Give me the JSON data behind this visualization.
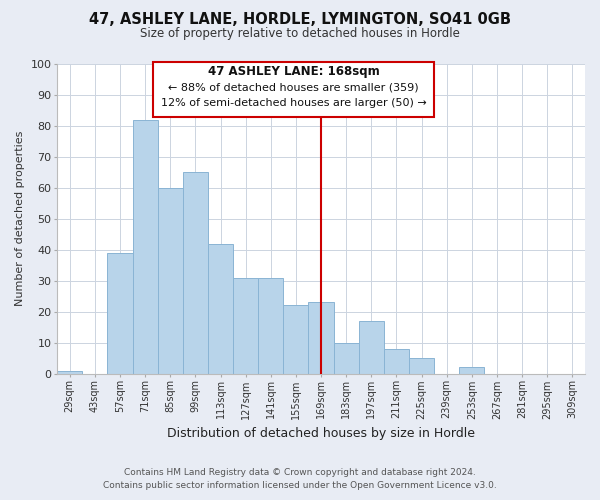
{
  "title": "47, ASHLEY LANE, HORDLE, LYMINGTON, SO41 0GB",
  "subtitle": "Size of property relative to detached houses in Hordle",
  "xlabel": "Distribution of detached houses by size in Hordle",
  "ylabel": "Number of detached properties",
  "bar_labels": [
    "29sqm",
    "43sqm",
    "57sqm",
    "71sqm",
    "85sqm",
    "99sqm",
    "113sqm",
    "127sqm",
    "141sqm",
    "155sqm",
    "169sqm",
    "183sqm",
    "197sqm",
    "211sqm",
    "225sqm",
    "239sqm",
    "253sqm",
    "267sqm",
    "281sqm",
    "295sqm",
    "309sqm"
  ],
  "bar_values": [
    1,
    0,
    39,
    82,
    60,
    65,
    42,
    31,
    31,
    22,
    23,
    10,
    17,
    8,
    5,
    0,
    2,
    0,
    0,
    0,
    0
  ],
  "bar_color": "#b8d4ea",
  "bar_edge_color": "#8ab4d4",
  "vline_x_index": 10,
  "vline_color": "#cc0000",
  "ylim": [
    0,
    100
  ],
  "yticks": [
    0,
    10,
    20,
    30,
    40,
    50,
    60,
    70,
    80,
    90,
    100
  ],
  "annotation_title": "47 ASHLEY LANE: 168sqm",
  "annotation_line1": "← 88% of detached houses are smaller (359)",
  "annotation_line2": "12% of semi-detached houses are larger (50) →",
  "footer_line1": "Contains HM Land Registry data © Crown copyright and database right 2024.",
  "footer_line2": "Contains public sector information licensed under the Open Government Licence v3.0.",
  "bg_color": "#e8ecf4",
  "plot_bg_color": "#ffffff",
  "grid_color": "#ccd4e0"
}
